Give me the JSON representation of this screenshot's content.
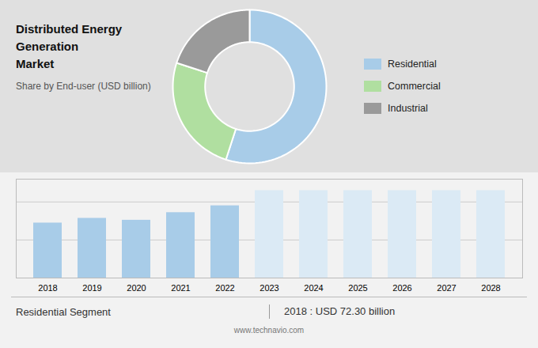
{
  "chart_data": [
    {
      "type": "pie",
      "title": "Distributed Energy Generation\nMarket",
      "subtitle": "Share by End-user (USD billion)",
      "categories": [
        "Residential",
        "Commercial",
        "Industrial"
      ],
      "values": [
        55,
        25,
        20
      ],
      "colors": [
        "#a8cce8",
        "#b0dfa0",
        "#9a9a9a"
      ],
      "legend": "right"
    },
    {
      "type": "bar",
      "categories": [
        "2018",
        "2019",
        "2020",
        "2021",
        "2022",
        "2023",
        "2024",
        "2025",
        "2026",
        "2027",
        "2028"
      ],
      "values": [
        72.3,
        78.5,
        76.0,
        86.0,
        95.0,
        115,
        115,
        115,
        115,
        115,
        115
      ],
      "colors": [
        "#a8cce8",
        "#a8cce8",
        "#a8cce8",
        "#a8cce8",
        "#a8cce8",
        "#dbeaf5",
        "#dbeaf5",
        "#dbeaf5",
        "#dbeaf5",
        "#dbeaf5",
        "#dbeaf5"
      ],
      "ylim": [
        0,
        130
      ],
      "yticks": [
        0,
        50,
        100
      ],
      "grid": true,
      "tick_labels": "x",
      "annotations": [
        "Residential Segment",
        "2018 : USD 72.30 billion",
        "www.technavio.com"
      ]
    }
  ]
}
